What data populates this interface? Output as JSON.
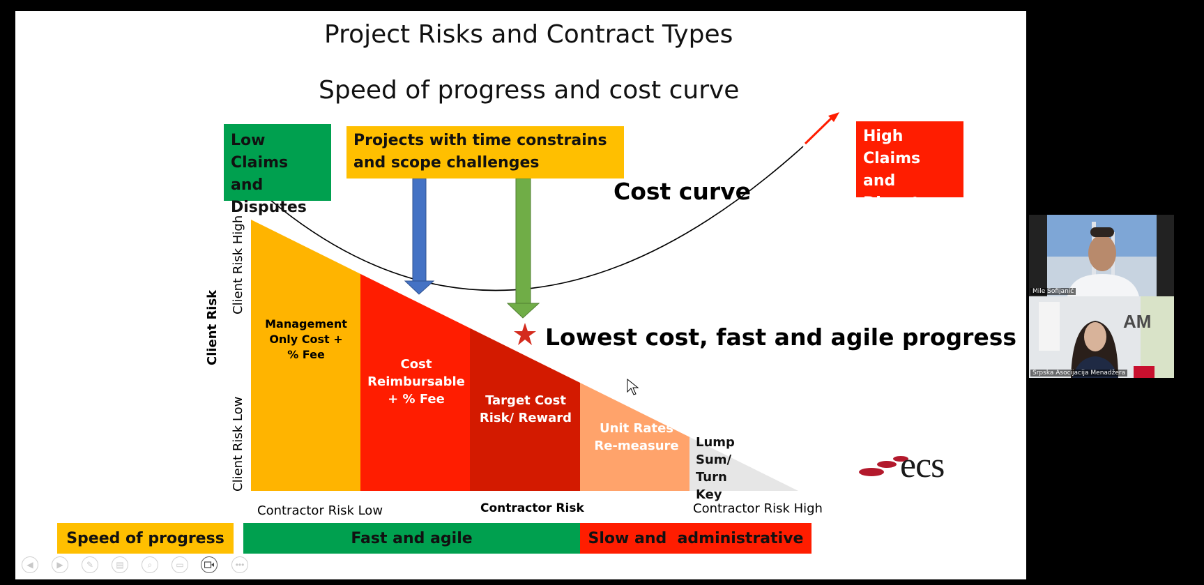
{
  "slide": {
    "title": "Project Risks and Contract Types",
    "subtitle": "Speed of progress and cost curve",
    "low_claims": "Low Claims and Disputes",
    "projects_box": "Projects with time constrains and scope challenges",
    "high_claims": "High Claims and Disputes",
    "cost_curve_label": "Cost curve",
    "lowest_cost_label": "Lowest cost, fast and agile progress",
    "client_risk": "Client Risk",
    "client_risk_high": "Client Risk High",
    "client_risk_low": "Client Risk Low",
    "contractor_risk_low": "Contractor Risk Low",
    "contractor_risk": "Contractor Risk",
    "contractor_risk_high": "Contractor Risk High",
    "segments": [
      {
        "label": "Management Only Cost + % Fee",
        "color": "#ffb400"
      },
      {
        "label": "Cost Reimbursable + % Fee",
        "color": "#ff1d00"
      },
      {
        "label": "Target Cost Risk/ Reward",
        "color": "#d31a00"
      },
      {
        "label": "Unit Rates Re-measure",
        "color": "#ffa36b"
      },
      {
        "label": "Lump Sum/ Turn Key",
        "color": "#e6e6e6"
      }
    ],
    "speed_label": "Speed of progress",
    "fast_label": "Fast and agile",
    "slow_label": "Slow and  administrative",
    "logo_text": "ecs",
    "colors": {
      "green": "#00a04f",
      "yellow": "#ffbf00",
      "red": "#ff1d00",
      "blue_arrow": "#4472c4",
      "green_arrow": "#70ad47",
      "star": "#d42b1e"
    }
  },
  "participants": [
    {
      "name": "Mile Sofijanić"
    },
    {
      "name": "Srpska Asocijacija Menadžera"
    }
  ],
  "toolbar": {
    "icons": [
      "previous-icon",
      "next-icon",
      "pen-icon",
      "slides-icon",
      "zoom-icon",
      "subtitles-icon",
      "camera-icon",
      "more-icon"
    ]
  }
}
